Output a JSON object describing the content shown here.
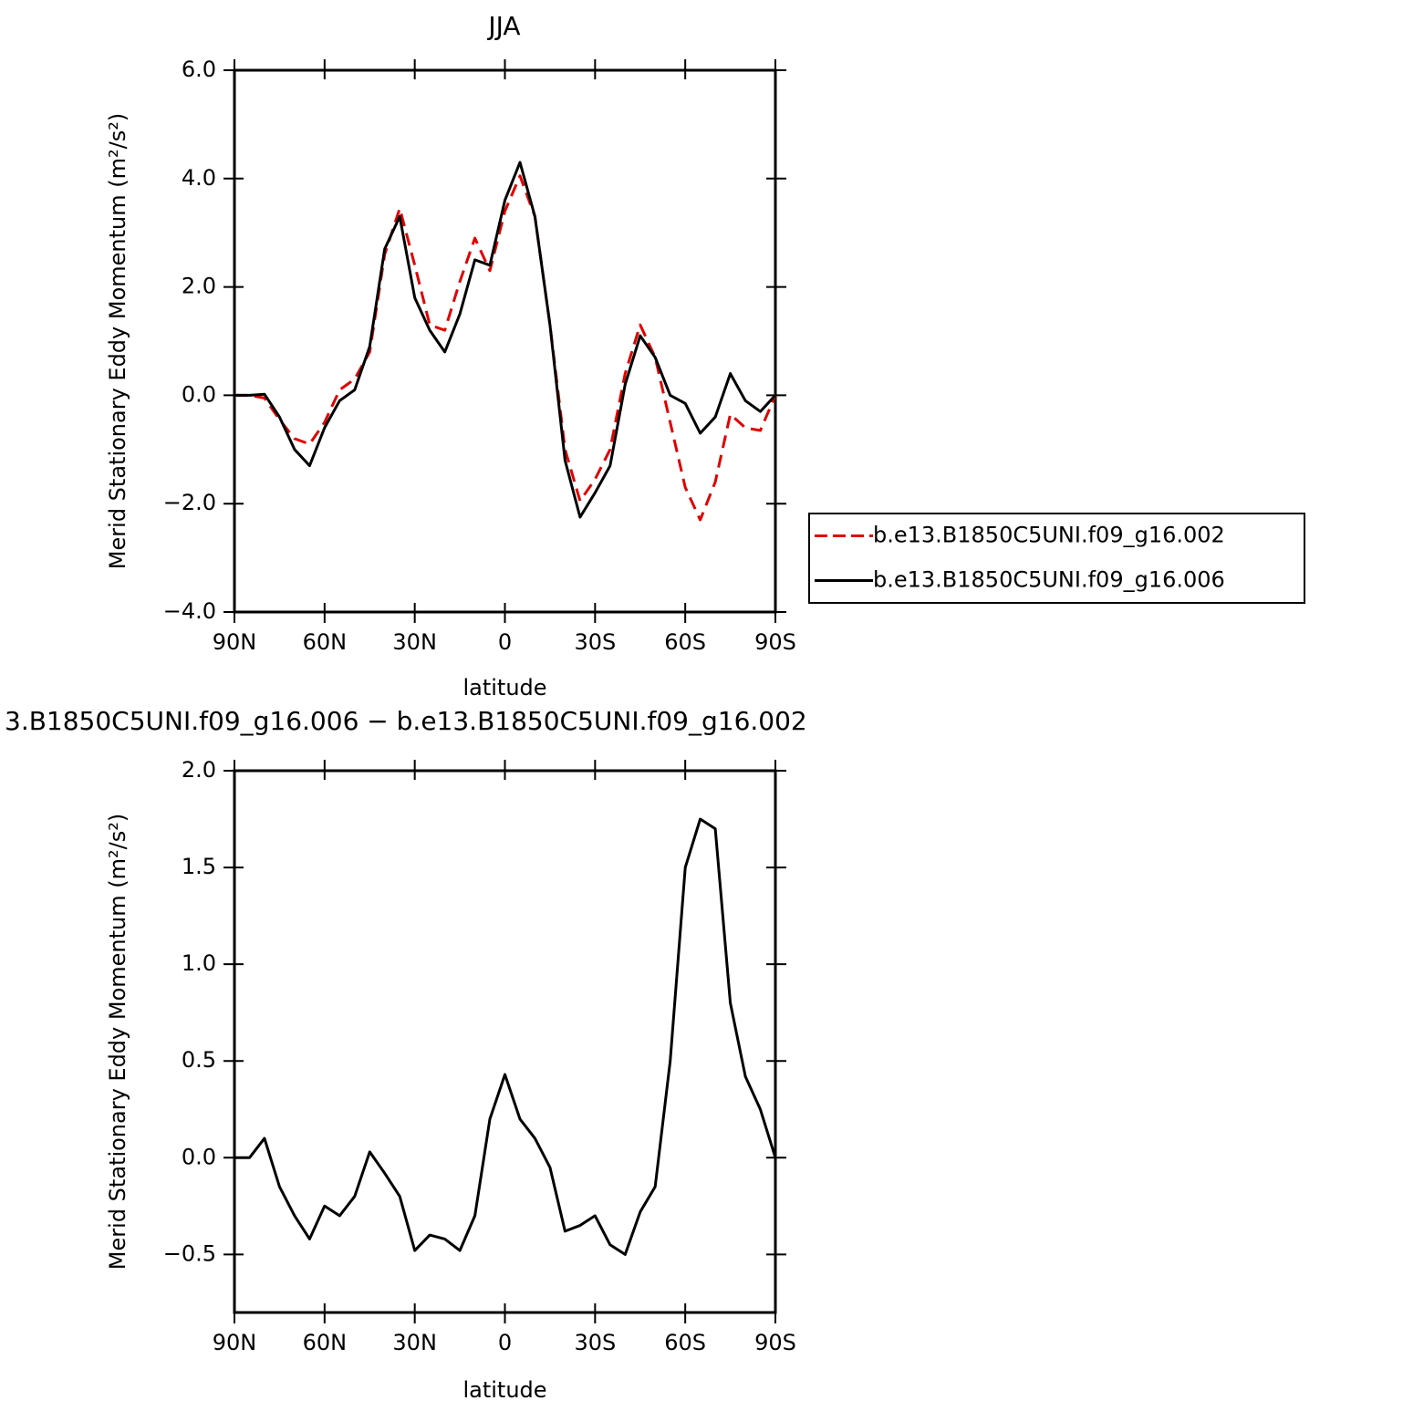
{
  "chart_data": [
    {
      "type": "line",
      "title": "JJA",
      "x_label": "latitude",
      "y_label": "Merid Stationary Eddy Momentum (m²/s²)",
      "x": [
        90,
        85,
        80,
        75,
        70,
        65,
        60,
        55,
        50,
        45,
        40,
        35,
        30,
        25,
        20,
        15,
        10,
        5,
        0,
        -5,
        -10,
        -15,
        -20,
        -25,
        -30,
        -35,
        -40,
        -45,
        -50,
        -55,
        -60,
        -65,
        -70,
        -75,
        -80,
        -85,
        -90
      ],
      "xlim": [
        90,
        -90
      ],
      "xticks": [
        {
          "value": 90,
          "label": "90N"
        },
        {
          "value": 60,
          "label": "60N"
        },
        {
          "value": 30,
          "label": "30N"
        },
        0,
        {
          "value": -30,
          "label": "30S"
        },
        {
          "value": -60,
          "label": "60S"
        },
        {
          "value": -90,
          "label": "90S"
        }
      ],
      "ylim": [
        -4,
        6
      ],
      "yticks": [
        {
          "value": -4,
          "label": "−4.0"
        },
        {
          "value": -2,
          "label": "−2.0"
        },
        {
          "value": 0,
          "label": "0.0"
        },
        {
          "value": 2,
          "label": "2.0"
        },
        {
          "value": 4,
          "label": "4.0"
        },
        {
          "value": 6,
          "label": "6.0"
        }
      ],
      "legend": "outside right",
      "series": [
        {
          "name": "b.e13.B1850C5UNI.f09_g16.002",
          "color": "#e00000",
          "dashed": true,
          "values": [
            0,
            0,
            -0.05,
            -0.45,
            -0.8,
            -0.9,
            -0.5,
            0.1,
            0.3,
            0.8,
            2.6,
            3.45,
            2.4,
            1.3,
            1.2,
            2.1,
            2.9,
            2.3,
            3.4,
            4.05,
            3.3,
            1.3,
            -1.0,
            -1.95,
            -1.55,
            -1.0,
            0.4,
            1.3,
            0.7,
            -0.5,
            -1.7,
            -2.3,
            -1.6,
            -0.35,
            -0.6,
            -0.65,
            0
          ]
        },
        {
          "name": "b.e13.B1850C5UNI.f09_g16.006",
          "color": "#000000",
          "dashed": false,
          "values": [
            0,
            0,
            0.02,
            -0.4,
            -1.0,
            -1.3,
            -0.6,
            -0.1,
            0.1,
            0.9,
            2.7,
            3.3,
            1.8,
            1.2,
            0.8,
            1.5,
            2.5,
            2.4,
            3.6,
            4.3,
            3.3,
            1.3,
            -1.2,
            -2.25,
            -1.8,
            -1.3,
            0.2,
            1.1,
            0.7,
            0.0,
            -0.15,
            -0.7,
            -0.4,
            0.4,
            -0.1,
            -0.3,
            0
          ]
        }
      ]
    },
    {
      "type": "line",
      "title": "3.B1850C5UNI.f09_g16.006 − b.e13.B1850C5UNI.f09_g16.002",
      "x_label": "latitude",
      "y_label": "Merid Stationary Eddy Momentum (m²/s²)",
      "x": [
        90,
        85,
        80,
        75,
        70,
        65,
        60,
        55,
        50,
        45,
        40,
        35,
        30,
        25,
        20,
        15,
        10,
        5,
        0,
        -5,
        -10,
        -15,
        -20,
        -25,
        -30,
        -35,
        -40,
        -45,
        -50,
        -55,
        -60,
        -65,
        -70,
        -75,
        -80,
        -85,
        -90
      ],
      "xlim": [
        90,
        -90
      ],
      "xticks": [
        {
          "value": 90,
          "label": "90N"
        },
        {
          "value": 60,
          "label": "60N"
        },
        {
          "value": 30,
          "label": "30N"
        },
        0,
        {
          "value": -30,
          "label": "30S"
        },
        {
          "value": -60,
          "label": "60S"
        },
        {
          "value": -90,
          "label": "90S"
        }
      ],
      "ylim": [
        -0.8,
        2
      ],
      "yticks": [
        {
          "value": -0.5,
          "label": "−0.5"
        },
        {
          "value": 0,
          "label": "0.0"
        },
        0.5,
        {
          "value": 1,
          "label": "1.0"
        },
        1.5,
        {
          "value": 2,
          "label": "2.0"
        }
      ],
      "series": [
        {
          "color": "#000000",
          "dashed": false,
          "values": [
            0,
            0,
            0.1,
            -0.15,
            -0.3,
            -0.42,
            -0.25,
            -0.3,
            -0.2,
            0.03,
            -0.08,
            -0.2,
            -0.48,
            -0.4,
            -0.42,
            -0.48,
            -0.3,
            0.2,
            0.43,
            0.2,
            0.1,
            -0.05,
            -0.38,
            -0.35,
            -0.3,
            -0.45,
            -0.5,
            -0.28,
            -0.15,
            0.5,
            1.5,
            1.75,
            1.7,
            0.8,
            0.42,
            0.25,
            0
          ]
        }
      ]
    }
  ]
}
